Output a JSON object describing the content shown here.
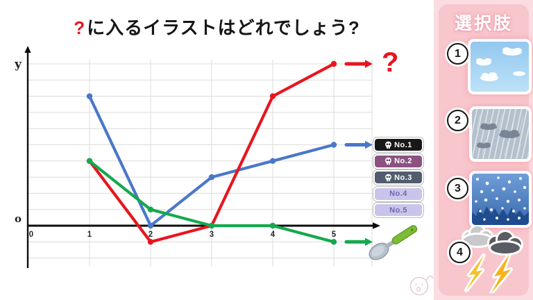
{
  "title": {
    "mark": "?",
    "text": "に入るイラストはどれでしょう?"
  },
  "mystery": {
    "mark": "?"
  },
  "chart_data": {
    "type": "line",
    "x": [
      1,
      2,
      3,
      4,
      5
    ],
    "x_ticks": [
      "0",
      "1",
      "2",
      "3",
      "4",
      "5"
    ],
    "y_axis_label": "y",
    "origin_label": "o",
    "xlim": [
      0,
      5.7
    ],
    "ylim": [
      -2,
      10
    ],
    "grid": true,
    "series": [
      {
        "name": "No.1 (blue)",
        "color": "#4a77c9",
        "values": [
          8,
          0,
          3,
          4,
          5
        ],
        "arrow_target": "No.1 badge"
      },
      {
        "name": "mystery (red, answer ?)",
        "color": "#e8151f",
        "values": [
          4,
          -1,
          0,
          8,
          10
        ],
        "arrow_target": "red question mark"
      },
      {
        "name": "spoon (green)",
        "color": "#14a94e",
        "values": [
          4,
          1,
          0,
          0,
          -1
        ],
        "arrow_target": "spoon illustration"
      }
    ],
    "legend_position": "right"
  },
  "legend": {
    "items": [
      {
        "label": "No.1",
        "bg": "#181818",
        "fg": "#ffffff",
        "skull": true
      },
      {
        "label": "No.2",
        "bg": "#8b5280",
        "fg": "#ffffff",
        "skull": true
      },
      {
        "label": "No.3",
        "bg": "#525c6e",
        "fg": "#ffffff",
        "skull": true
      },
      {
        "label": "No.4",
        "bg": "#c9c5ea",
        "fg": "#7064ae",
        "skull": false
      },
      {
        "label": "No.5",
        "bg": "#c9c5ea",
        "fg": "#7064ae",
        "skull": false
      }
    ]
  },
  "sidebar": {
    "title": "選択肢",
    "bg": "#f8c6cd",
    "options": [
      {
        "number": "1",
        "glyph": "①",
        "illustration": "clear-sky"
      },
      {
        "number": "2",
        "glyph": "②",
        "illustration": "rain"
      },
      {
        "number": "3",
        "glyph": "③",
        "illustration": "snow"
      },
      {
        "number": "4",
        "glyph": "④",
        "illustration": "thunderstorm"
      }
    ]
  },
  "icons": {
    "skull-icon": "☠ (white skull on dark badge)",
    "spoon-icon": "spoon with green handle and gray bowl",
    "arrow-right-icon": "→",
    "watermark-face-icon": "faint circled face with sprout"
  },
  "colors": {
    "red_line": "#e8151f",
    "blue_line": "#4a77c9",
    "green_line": "#14a94e",
    "grid": "#dcdcdc",
    "sidebar_pink": "#f8c6cd"
  }
}
